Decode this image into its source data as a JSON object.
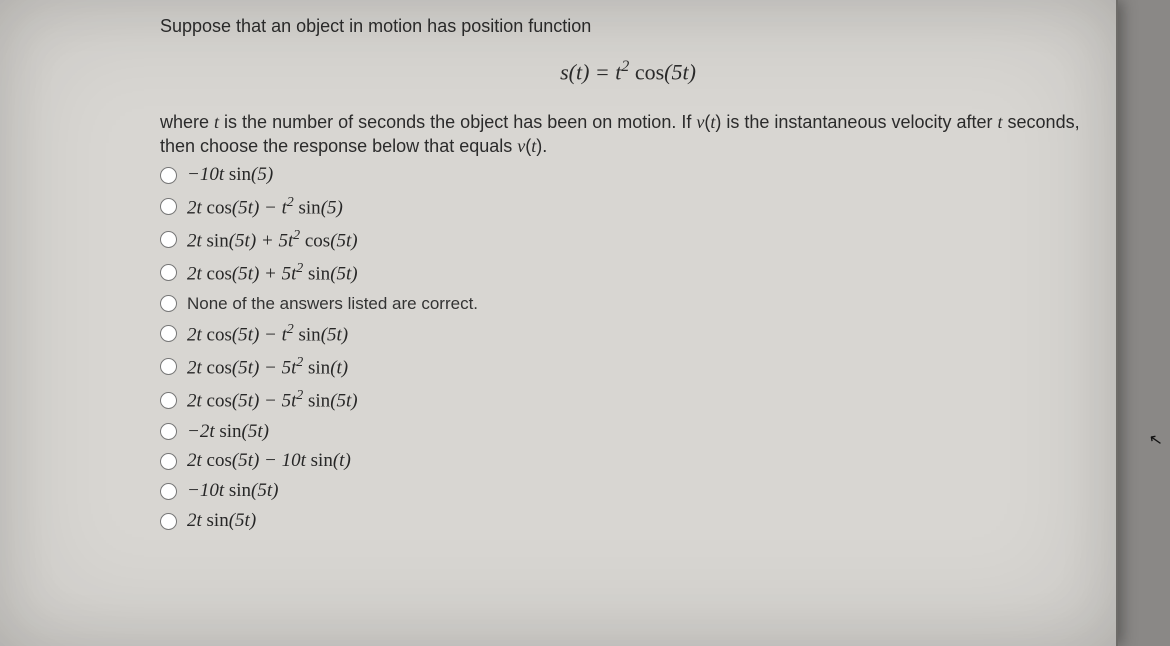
{
  "colors": {
    "page_background": "#8a8886",
    "sheet_background": "#d8d6d2",
    "text_color": "#2b2b2b",
    "radio_accent": "#4a4a4a"
  },
  "typography": {
    "body_font": "Arial",
    "math_font": "Cambria Math / Times New Roman",
    "question_fontsize_pt": 14,
    "equation_fontsize_pt": 16,
    "choice_fontsize_pt": 14
  },
  "question": {
    "intro": "Suppose that an object in motion has position function",
    "equation_html": "<span class='mathit'>s</span>(<span class='mathit'>t</span>) = <span class='mathit'>t</span><span class='sup'>2</span> <span class='rm'>cos</span>(5<span class='mathit'>t</span>)",
    "followup_html": "where <span class='mathit'>t</span> is the number of seconds the object has been on motion. If <span class='mathit'>v</span>(<span class='mathit'>t</span>) is the instantaneous velocity after <span class='mathit'>t</span> seconds, then choose the response below that equals <span class='mathit'>v</span>(<span class='mathit'>t</span>)."
  },
  "choices": [
    {
      "html": "&minus;10<span class='mathit'>t</span> <span class='rm'>sin</span>(5)",
      "plain": false
    },
    {
      "html": "2<span class='mathit'>t</span> <span class='rm'>cos</span>(5<span class='mathit'>t</span>) &minus; <span class='mathit'>t</span><span class='sup'>2</span> <span class='rm'>sin</span>(5)",
      "plain": false
    },
    {
      "html": "2<span class='mathit'>t</span> <span class='rm'>sin</span>(5<span class='mathit'>t</span>) + 5<span class='mathit'>t</span><span class='sup'>2</span> <span class='rm'>cos</span>(5<span class='mathit'>t</span>)",
      "plain": false
    },
    {
      "html": "2<span class='mathit'>t</span> <span class='rm'>cos</span>(5<span class='mathit'>t</span>) + 5<span class='mathit'>t</span><span class='sup'>2</span> <span class='rm'>sin</span>(5<span class='mathit'>t</span>)",
      "plain": false
    },
    {
      "html": "None of the answers listed are correct.",
      "plain": true
    },
    {
      "html": "2<span class='mathit'>t</span> <span class='rm'>cos</span>(5<span class='mathit'>t</span>) &minus; <span class='mathit'>t</span><span class='sup'>2</span> <span class='rm'>sin</span>(5<span class='mathit'>t</span>)",
      "plain": false
    },
    {
      "html": "2<span class='mathit'>t</span> <span class='rm'>cos</span>(5<span class='mathit'>t</span>) &minus; 5<span class='mathit'>t</span><span class='sup'>2</span> <span class='rm'>sin</span>(<span class='mathit'>t</span>)",
      "plain": false
    },
    {
      "html": "2<span class='mathit'>t</span> <span class='rm'>cos</span>(5<span class='mathit'>t</span>) &minus; 5<span class='mathit'>t</span><span class='sup'>2</span> <span class='rm'>sin</span>(5<span class='mathit'>t</span>)",
      "plain": false
    },
    {
      "html": "&minus;2<span class='mathit'>t</span> <span class='rm'>sin</span>(5<span class='mathit'>t</span>)",
      "plain": false
    },
    {
      "html": "2<span class='mathit'>t</span> <span class='rm'>cos</span>(5<span class='mathit'>t</span>) &minus; 10<span class='mathit'>t</span> <span class='rm'>sin</span>(<span class='mathit'>t</span>)",
      "plain": false
    },
    {
      "html": "&minus;10<span class='mathit'>t</span> <span class='rm'>sin</span>(5<span class='mathit'>t</span>)",
      "plain": false
    },
    {
      "html": "2<span class='mathit'>t</span> <span class='rm'>sin</span>(5<span class='mathit'>t</span>)",
      "plain": false
    }
  ]
}
